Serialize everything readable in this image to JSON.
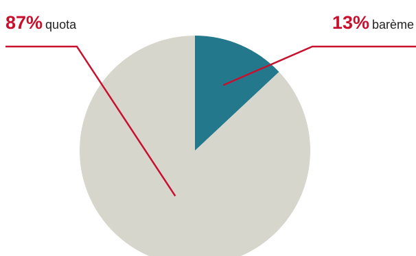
{
  "chart_data": {
    "type": "pie",
    "title": "",
    "slices": [
      {
        "percent_label": "13%",
        "label": "barème",
        "value": 13,
        "color": "#23788c"
      },
      {
        "percent_label": "87%",
        "label": "quota",
        "value": 87,
        "color": "#d6d6cc"
      }
    ],
    "annotation_color": "#c8102e",
    "text_color": "#222222",
    "legend": "none",
    "start_angle_deg": 0,
    "direction": "clockwise"
  }
}
